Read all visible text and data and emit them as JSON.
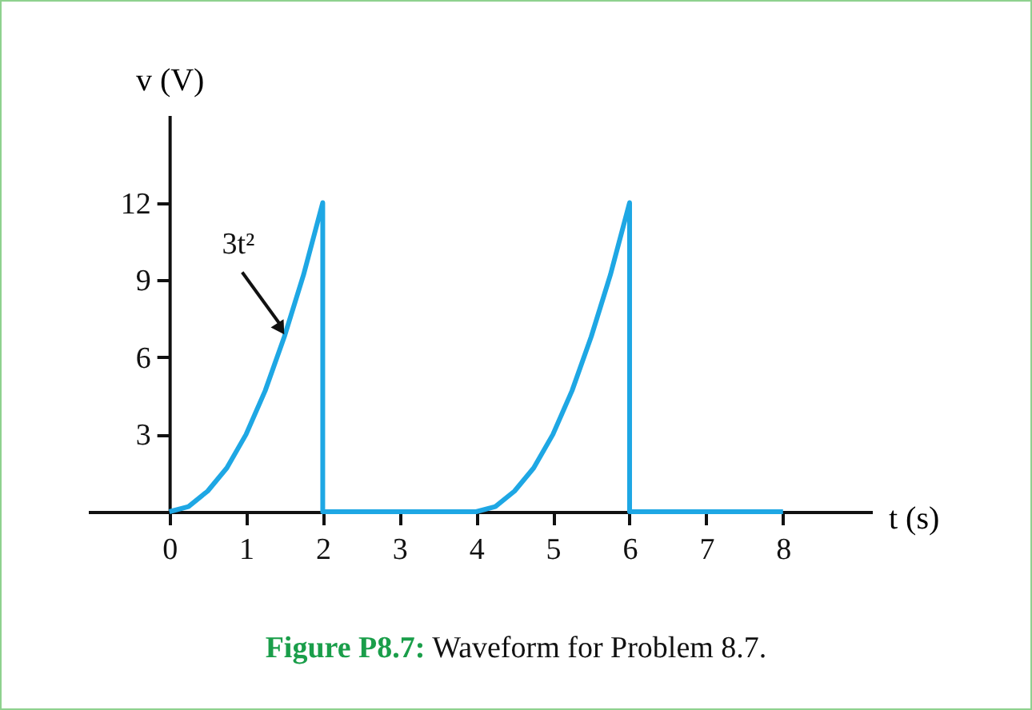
{
  "chart_data": {
    "type": "line",
    "title": "Figure P8.7: Waveform for Problem 8.7.",
    "xlabel": "t (s)",
    "ylabel": "v (V)",
    "x": [
      0,
      0.25,
      0.5,
      0.75,
      1,
      1.25,
      1.5,
      1.75,
      2,
      2,
      4,
      4.25,
      4.5,
      4.75,
      5,
      5.25,
      5.5,
      5.75,
      6,
      6,
      8
    ],
    "series": [
      {
        "color": "#1ea7e4",
        "values": [
          0,
          0.2,
          0.8,
          1.7,
          3,
          4.7,
          6.8,
          9.2,
          12,
          0,
          0,
          0.2,
          0.8,
          1.7,
          3,
          4.7,
          6.8,
          9.2,
          12,
          0,
          0
        ]
      }
    ],
    "xlim": [
      -1.06,
      9.16
    ],
    "ylim": [
      0,
      15.4
    ],
    "xticks": [
      0,
      1,
      2,
      3,
      4,
      5,
      6,
      7,
      8
    ],
    "yticks": [
      3,
      6,
      9,
      12
    ],
    "annotations": [
      {
        "text": "3t²",
        "x": 1.5,
        "y": 6.8
      }
    ],
    "grid": false,
    "marker": "none",
    "line_style": "solid"
  }
}
